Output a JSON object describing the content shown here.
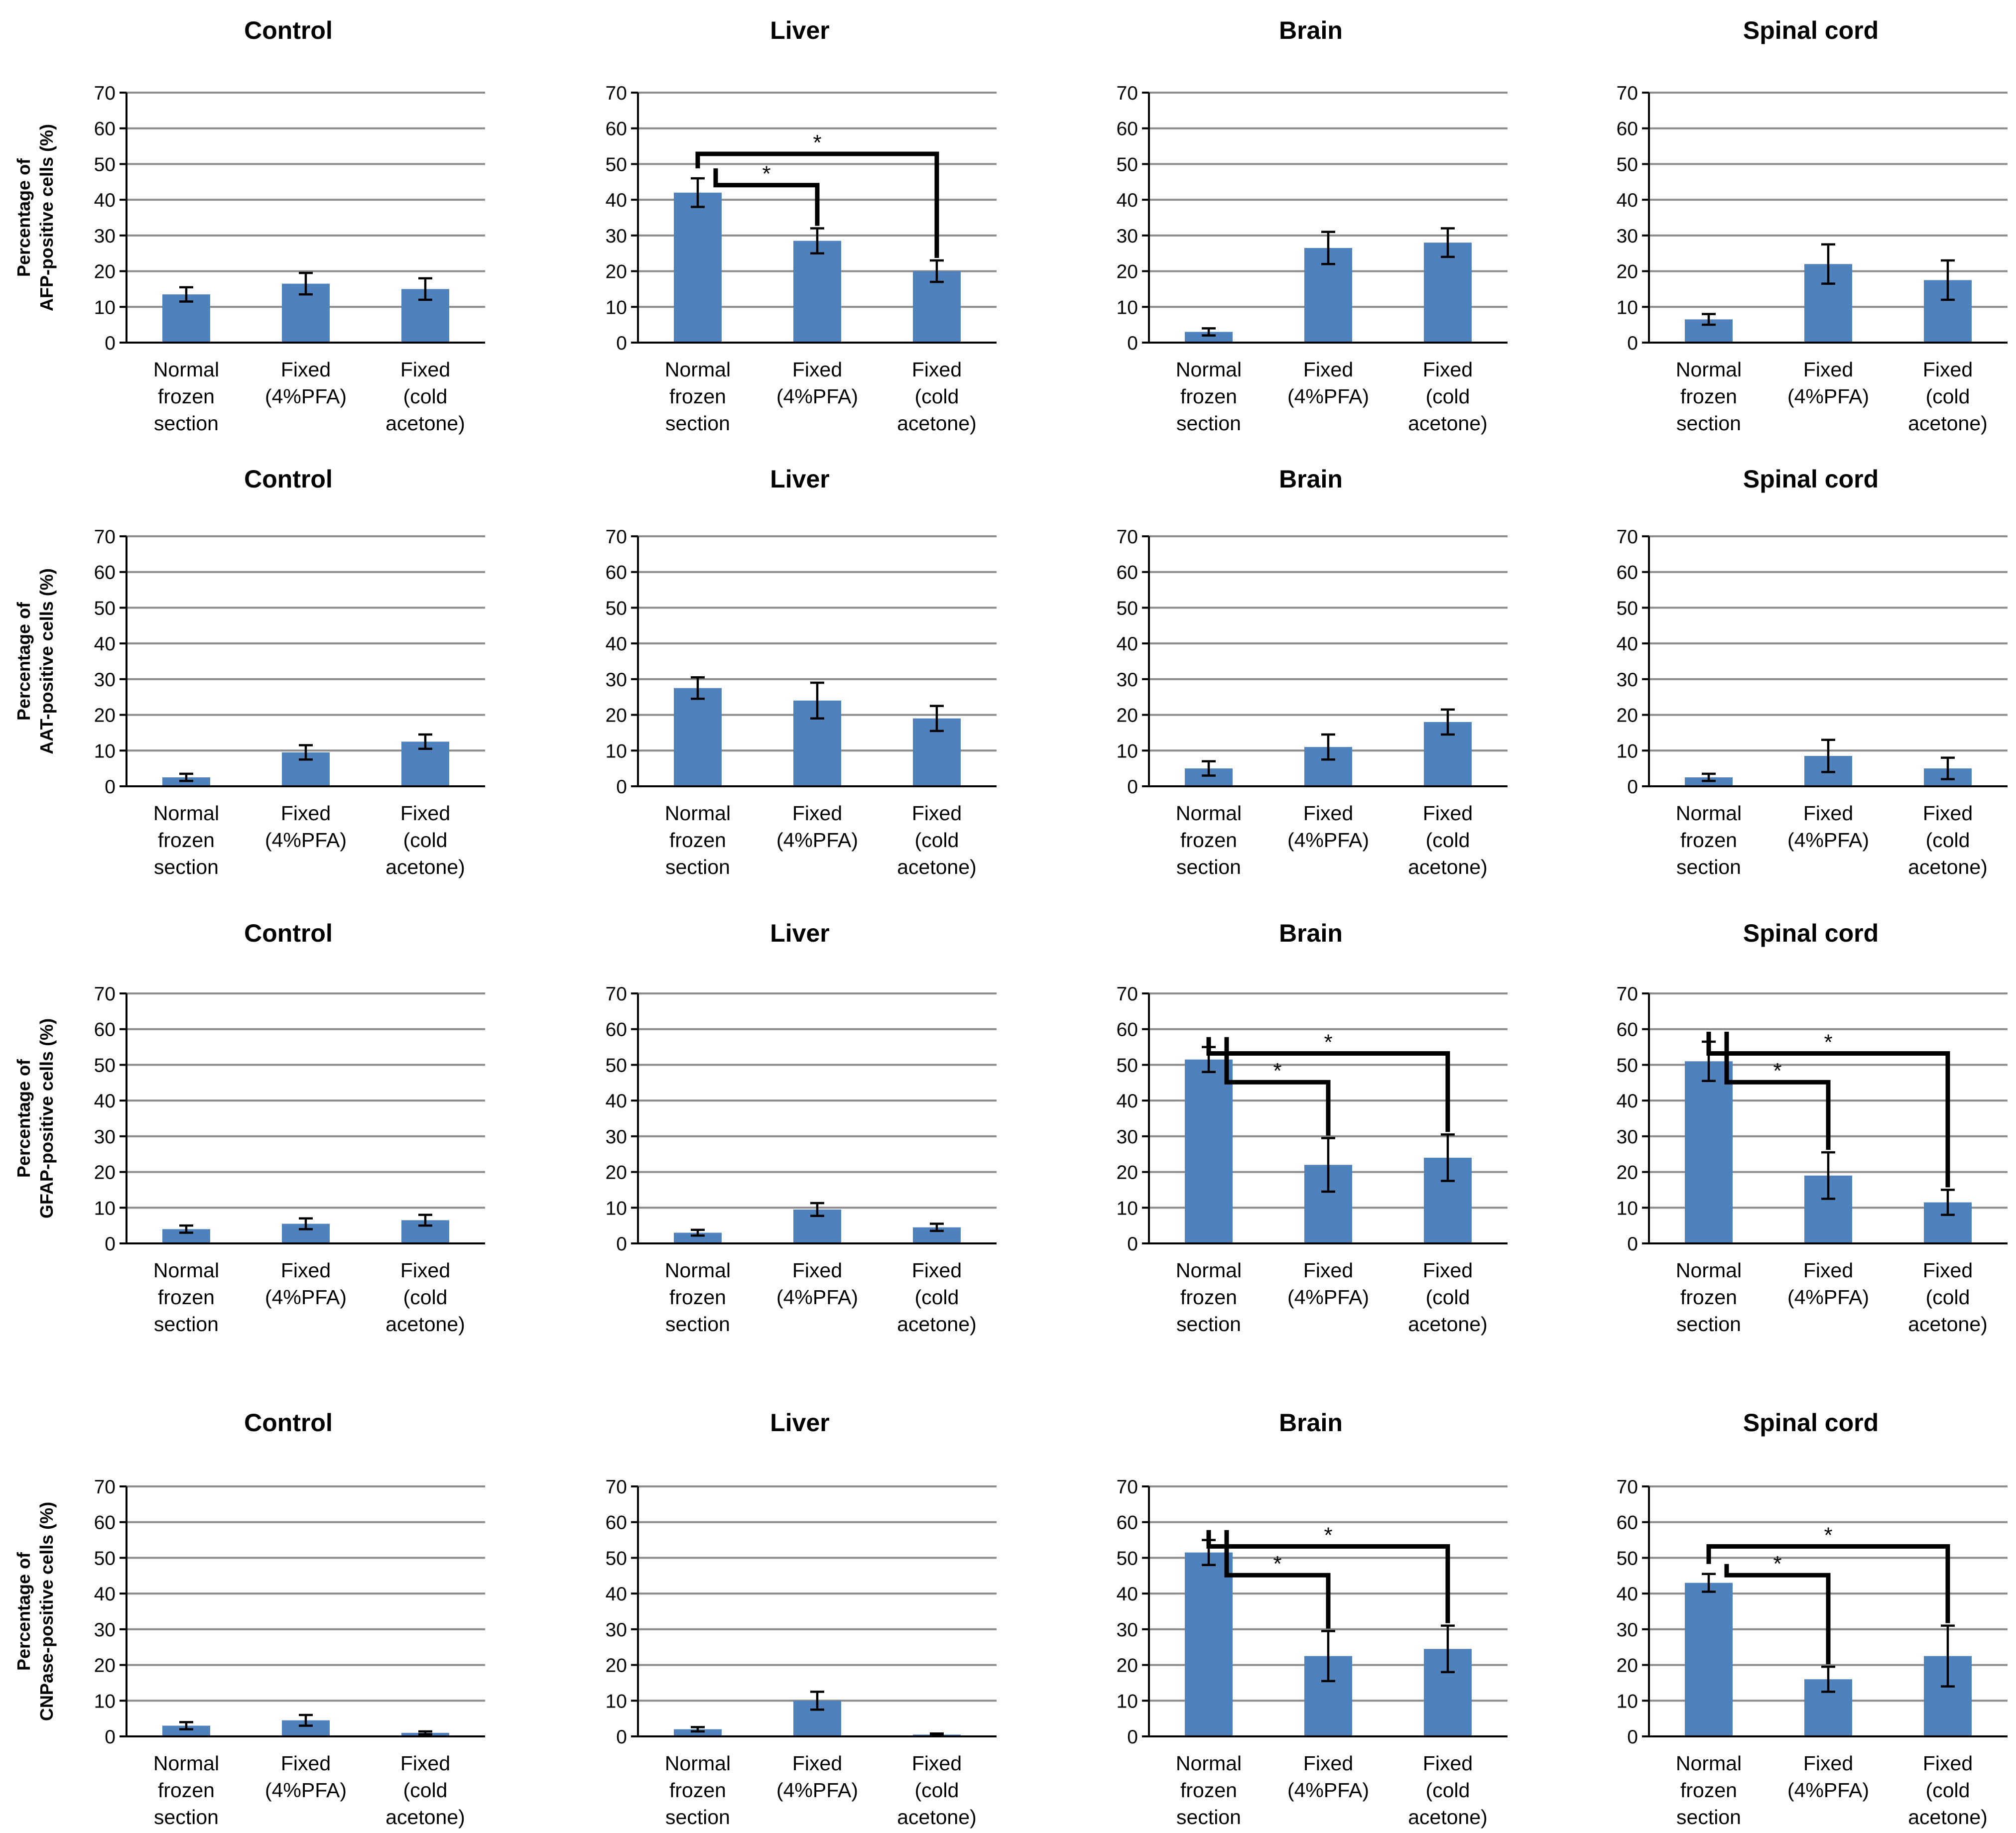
{
  "figure": {
    "categories": [
      [
        "Normal",
        "frozen",
        "section"
      ],
      [
        "Fixed",
        "(4%PFA)"
      ],
      [
        "Fixed",
        "(cold",
        "acetone)"
      ]
    ],
    "colors": {
      "bar": "#4f81bd",
      "grid": "#8c8c8c",
      "axis": "#000000"
    },
    "ylim": [
      0,
      70
    ],
    "yticks": [
      "0",
      "10",
      "20",
      "30",
      "40",
      "50",
      "60",
      "70"
    ],
    "significance_symbol": "*"
  },
  "chart_data": [
    {
      "type": "bar",
      "row": 0,
      "col": 0,
      "title": "Control",
      "ylabel": [
        "Percentage of",
        "AFP-positive cells (%)"
      ],
      "categories": [
        "Normal frozen section",
        "Fixed (4%PFA)",
        "Fixed (cold acetone)"
      ],
      "values": [
        13.5,
        16.5,
        15.0
      ],
      "errors": [
        2.0,
        3.0,
        3.0
      ],
      "ylim": [
        0,
        70
      ],
      "significance": []
    },
    {
      "type": "bar",
      "row": 0,
      "col": 1,
      "title": "Liver",
      "ylabel": null,
      "categories": [
        "Normal frozen section",
        "Fixed (4%PFA)",
        "Fixed (cold acetone)"
      ],
      "values": [
        42.0,
        28.5,
        20.0
      ],
      "errors": [
        4.0,
        3.5,
        3.0
      ],
      "ylim": [
        0,
        70
      ],
      "significance": [
        {
          "from": 0,
          "to": 1,
          "label": "*"
        },
        {
          "from": 0,
          "to": 2,
          "label": "*"
        }
      ]
    },
    {
      "type": "bar",
      "row": 0,
      "col": 2,
      "title": "Brain",
      "ylabel": null,
      "categories": [
        "Normal frozen section",
        "Fixed (4%PFA)",
        "Fixed (cold acetone)"
      ],
      "values": [
        3.0,
        26.5,
        28.0
      ],
      "errors": [
        1.0,
        4.5,
        4.0
      ],
      "ylim": [
        0,
        70
      ],
      "significance": []
    },
    {
      "type": "bar",
      "row": 0,
      "col": 3,
      "title": "Spinal cord",
      "ylabel": null,
      "categories": [
        "Normal frozen section",
        "Fixed (4%PFA)",
        "Fixed (cold acetone)"
      ],
      "values": [
        6.5,
        22.0,
        17.5
      ],
      "errors": [
        1.5,
        5.5,
        5.5
      ],
      "ylim": [
        0,
        70
      ],
      "significance": []
    },
    {
      "type": "bar",
      "row": 1,
      "col": 0,
      "title": "Control",
      "ylabel": [
        "Percentage of",
        "AAT-positive cells (%)"
      ],
      "categories": [
        "Normal frozen section",
        "Fixed (4%PFA)",
        "Fixed (cold acetone)"
      ],
      "values": [
        2.5,
        9.5,
        12.5
      ],
      "errors": [
        1.0,
        2.0,
        2.0
      ],
      "ylim": [
        0,
        70
      ],
      "significance": []
    },
    {
      "type": "bar",
      "row": 1,
      "col": 1,
      "title": "Liver",
      "ylabel": null,
      "categories": [
        "Normal frozen section",
        "Fixed (4%PFA)",
        "Fixed (cold acetone)"
      ],
      "values": [
        27.5,
        24.0,
        19.0
      ],
      "errors": [
        3.0,
        5.0,
        3.5
      ],
      "ylim": [
        0,
        70
      ],
      "significance": []
    },
    {
      "type": "bar",
      "row": 1,
      "col": 2,
      "title": "Brain",
      "ylabel": null,
      "categories": [
        "Normal frozen section",
        "Fixed (4%PFA)",
        "Fixed (cold acetone)"
      ],
      "values": [
        5.0,
        11.0,
        18.0
      ],
      "errors": [
        2.0,
        3.5,
        3.5
      ],
      "ylim": [
        0,
        70
      ],
      "significance": []
    },
    {
      "type": "bar",
      "row": 1,
      "col": 3,
      "title": "Spinal cord",
      "ylabel": null,
      "categories": [
        "Normal frozen section",
        "Fixed (4%PFA)",
        "Fixed (cold acetone)"
      ],
      "values": [
        2.5,
        8.5,
        5.0
      ],
      "errors": [
        1.0,
        4.5,
        3.0
      ],
      "ylim": [
        0,
        70
      ],
      "significance": []
    },
    {
      "type": "bar",
      "row": 2,
      "col": 0,
      "title": "Control",
      "ylabel": [
        "Percentage of",
        "GFAP-positive cells (%)"
      ],
      "categories": [
        "Normal frozen section",
        "Fixed (4%PFA)",
        "Fixed (cold acetone)"
      ],
      "values": [
        4.0,
        5.5,
        6.5
      ],
      "errors": [
        1.0,
        1.5,
        1.5
      ],
      "ylim": [
        0,
        70
      ],
      "significance": []
    },
    {
      "type": "bar",
      "row": 2,
      "col": 1,
      "title": "Liver",
      "ylabel": null,
      "categories": [
        "Normal frozen section",
        "Fixed (4%PFA)",
        "Fixed (cold acetone)"
      ],
      "values": [
        3.0,
        9.5,
        4.5
      ],
      "errors": [
        0.8,
        1.8,
        1.0
      ],
      "ylim": [
        0,
        70
      ],
      "significance": []
    },
    {
      "type": "bar",
      "row": 2,
      "col": 2,
      "title": "Brain",
      "ylabel": null,
      "categories": [
        "Normal frozen section",
        "Fixed (4%PFA)",
        "Fixed (cold acetone)"
      ],
      "values": [
        51.5,
        22.0,
        24.0
      ],
      "errors": [
        3.5,
        7.5,
        6.5
      ],
      "ylim": [
        0,
        70
      ],
      "significance": [
        {
          "from": 0,
          "to": 1,
          "label": "*"
        },
        {
          "from": 0,
          "to": 2,
          "label": "*"
        }
      ]
    },
    {
      "type": "bar",
      "row": 2,
      "col": 3,
      "title": "Spinal cord",
      "ylabel": null,
      "categories": [
        "Normal frozen section",
        "Fixed (4%PFA)",
        "Fixed (cold acetone)"
      ],
      "values": [
        51.0,
        19.0,
        11.5
      ],
      "errors": [
        5.5,
        6.5,
        3.5
      ],
      "ylim": [
        0,
        70
      ],
      "significance": [
        {
          "from": 0,
          "to": 1,
          "label": "*"
        },
        {
          "from": 0,
          "to": 2,
          "label": "*"
        }
      ]
    },
    {
      "type": "bar",
      "row": 3,
      "col": 0,
      "title": "Control",
      "ylabel": [
        "Percentage of",
        "CNPase-positive cells (%)"
      ],
      "categories": [
        "Normal frozen section",
        "Fixed (4%PFA)",
        "Fixed (cold acetone)"
      ],
      "values": [
        3.0,
        4.5,
        1.0
      ],
      "errors": [
        1.0,
        1.5,
        0.4
      ],
      "ylim": [
        0,
        70
      ],
      "significance": []
    },
    {
      "type": "bar",
      "row": 3,
      "col": 1,
      "title": "Liver",
      "ylabel": null,
      "categories": [
        "Normal frozen section",
        "Fixed (4%PFA)",
        "Fixed (cold acetone)"
      ],
      "values": [
        2.0,
        10.0,
        0.5
      ],
      "errors": [
        0.6,
        2.5,
        0.3
      ],
      "ylim": [
        0,
        70
      ],
      "significance": []
    },
    {
      "type": "bar",
      "row": 3,
      "col": 2,
      "title": "Brain",
      "ylabel": null,
      "categories": [
        "Normal frozen section",
        "Fixed (4%PFA)",
        "Fixed (cold acetone)"
      ],
      "values": [
        51.5,
        22.5,
        24.5
      ],
      "errors": [
        3.5,
        7.0,
        6.5
      ],
      "ylim": [
        0,
        70
      ],
      "significance": [
        {
          "from": 0,
          "to": 1,
          "label": "*"
        },
        {
          "from": 0,
          "to": 2,
          "label": "*"
        }
      ]
    },
    {
      "type": "bar",
      "row": 3,
      "col": 3,
      "title": "Spinal cord",
      "ylabel": null,
      "categories": [
        "Normal frozen section",
        "Fixed (4%PFA)",
        "Fixed (cold acetone)"
      ],
      "values": [
        43.0,
        16.0,
        22.5
      ],
      "errors": [
        2.5,
        3.5,
        8.5
      ],
      "ylim": [
        0,
        70
      ],
      "significance": [
        {
          "from": 0,
          "to": 1,
          "label": "*"
        },
        {
          "from": 0,
          "to": 2,
          "label": "*"
        }
      ]
    }
  ]
}
